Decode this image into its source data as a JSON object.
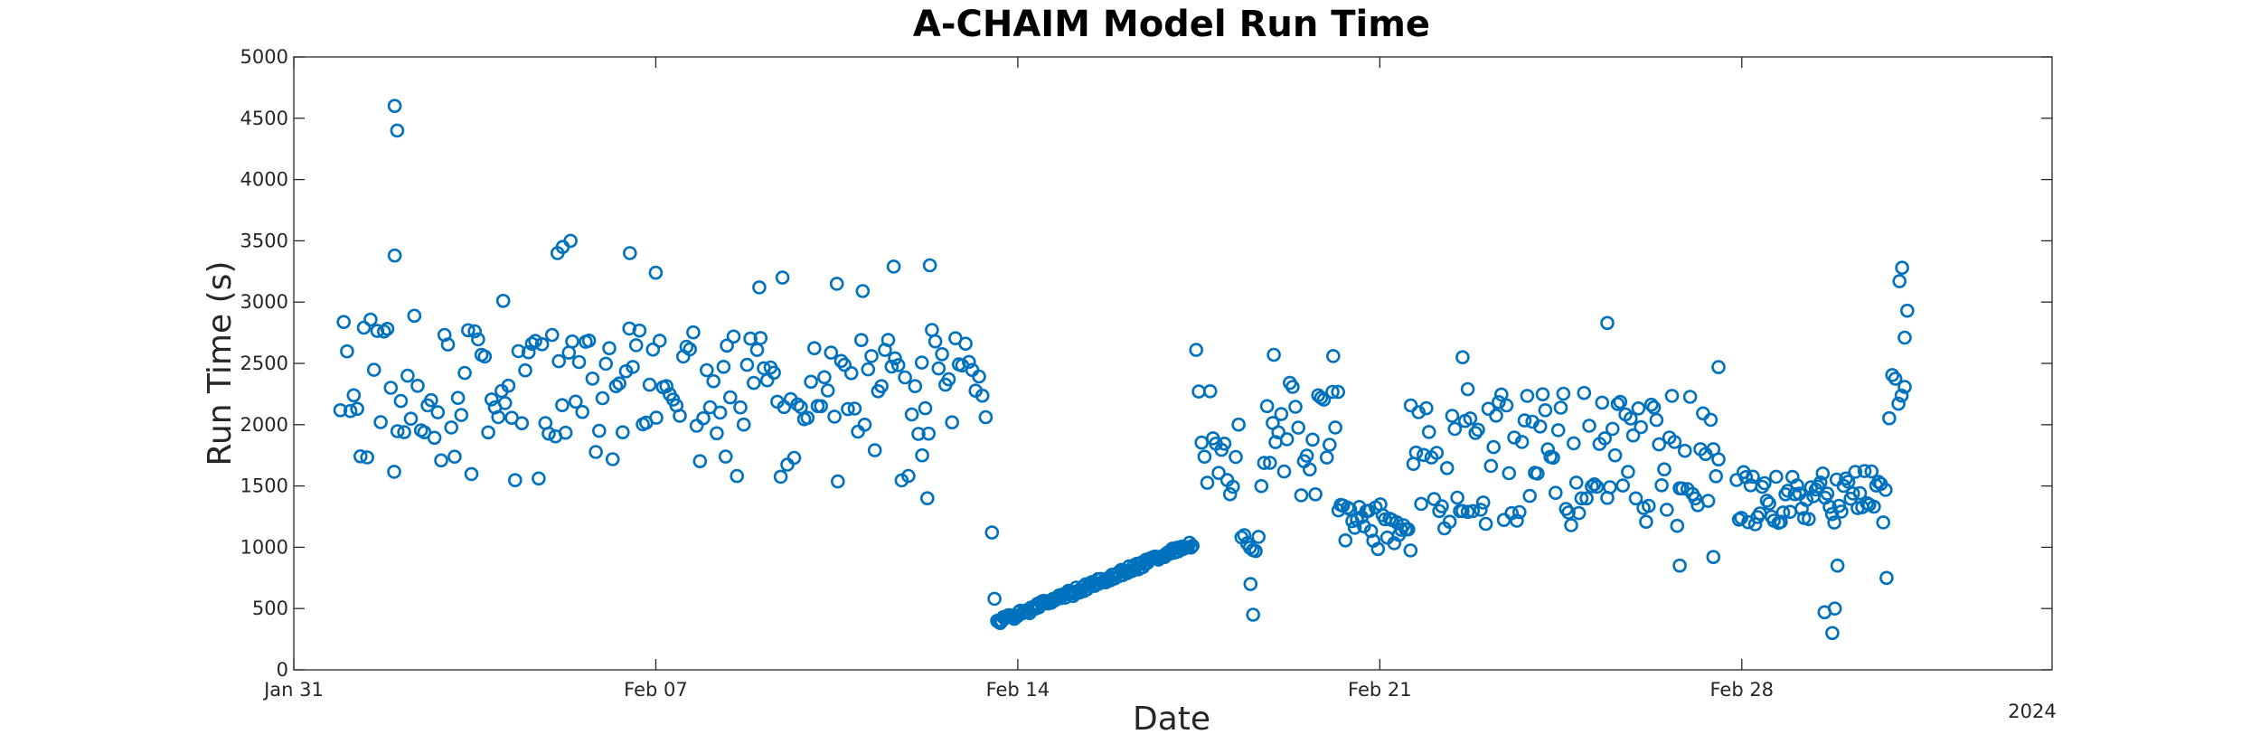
{
  "chart_data": {
    "type": "scatter",
    "title": "A-CHAIM Model Run Time",
    "xlabel": "Date",
    "ylabel": "Run Time (s)",
    "x_tick_labels": [
      "Jan 31",
      "Feb 07",
      "Feb 14",
      "Feb 21",
      "Feb 28"
    ],
    "x_ticks": [
      "2024-01-31",
      "2024-02-07",
      "2024-02-14",
      "2024-02-21",
      "2024-02-28"
    ],
    "x_secondary_label": "2024",
    "xlim": [
      "2024-01-31",
      "2024-03-05"
    ],
    "ylim": [
      0,
      5000
    ],
    "y_ticks": [
      0,
      500,
      1000,
      1500,
      2000,
      2500,
      3000,
      3500,
      4000,
      4500,
      5000
    ],
    "grid": false,
    "marker": "circle",
    "color": "#0072BD",
    "points": []
  }
}
